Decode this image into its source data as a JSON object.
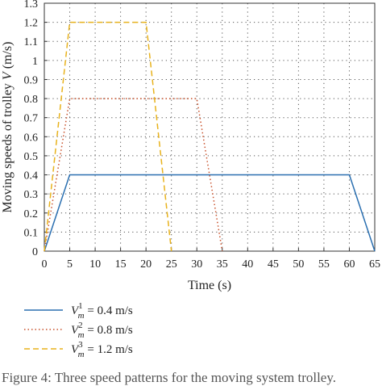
{
  "chart_data": {
    "type": "line",
    "xlabel": "Time (s)",
    "ylabel": "Moving speeds of trolley V (m/s)",
    "xlim": [
      0,
      65
    ],
    "ylim": [
      0,
      1.3
    ],
    "xticks": [
      "0",
      "5",
      "10",
      "15",
      "20",
      "25",
      "30",
      "35",
      "40",
      "45",
      "50",
      "55",
      "60",
      "65"
    ],
    "yticks": [
      "0",
      "0.1",
      "0.2",
      "0.3",
      "0.4",
      "0.5",
      "0.6",
      "0.7",
      "0.8",
      "0.9",
      "1",
      "1.1",
      "1.2",
      "1.3"
    ],
    "grid": true,
    "legend_position": "below",
    "series": [
      {
        "name": "V_m^1 = 0.4 m/s",
        "legend_symbol": "V",
        "legend_sup": "1",
        "legend_sub": "m",
        "legend_rest": " = 0.4 m/s",
        "color": "#2a6fb0",
        "dash": "solid",
        "x": [
          0,
          5,
          60,
          65
        ],
        "y": [
          0,
          0.4,
          0.4,
          0
        ]
      },
      {
        "name": "V_m^2 = 0.8 m/s",
        "legend_symbol": "V",
        "legend_sup": "2",
        "legend_sub": "m",
        "legend_rest": " = 0.8 m/s",
        "color": "#c8502a",
        "dash": "dotted",
        "x": [
          0,
          5,
          30,
          35
        ],
        "y": [
          0,
          0.8,
          0.8,
          0
        ]
      },
      {
        "name": "V_m^3 = 1.2 m/s",
        "legend_symbol": "V",
        "legend_sup": "3",
        "legend_sub": "m",
        "legend_rest": " = 1.2 m/s",
        "color": "#e8b21c",
        "dash": "dashed",
        "x": [
          0,
          5,
          20,
          25
        ],
        "y": [
          0,
          1.2,
          1.2,
          0
        ]
      }
    ]
  },
  "caption": "Figure 4: Three speed patterns for the moving system trolley."
}
